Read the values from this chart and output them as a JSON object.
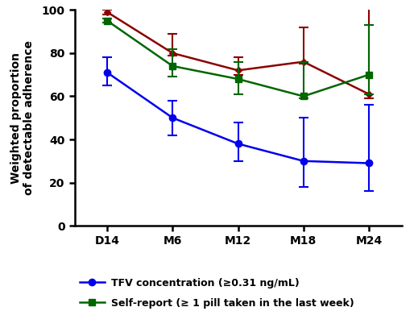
{
  "x_labels": [
    "D14",
    "M6",
    "M12",
    "M18",
    "M24"
  ],
  "x_positions": [
    0,
    1,
    2,
    3,
    4
  ],
  "tfv_y": [
    71,
    50,
    38,
    30,
    29
  ],
  "tfv_yerr_lo": [
    6,
    8,
    8,
    12,
    13
  ],
  "tfv_yerr_hi": [
    7,
    8,
    10,
    20,
    27
  ],
  "self_y": [
    95,
    74,
    68,
    60,
    70
  ],
  "self_yerr_lo": [
    1,
    5,
    7,
    1,
    9
  ],
  "self_yerr_hi": [
    1,
    8,
    8,
    16,
    23
  ],
  "pill_y": [
    99,
    80,
    72,
    76,
    61
  ],
  "pill_yerr_lo": [
    1,
    1,
    2,
    1,
    2
  ],
  "pill_yerr_hi": [
    1,
    9,
    6,
    16,
    40
  ],
  "tfv_color": "#0000ee",
  "self_color": "#006600",
  "pill_color": "#8b0000",
  "ylim": [
    0,
    100
  ],
  "ylabel": "Weighted proportion\nof detectable adherence",
  "legend_tfv": "TFV concentration (≥0.31 ng/mL)",
  "legend_self": "Self-report (≥ 1 pill taken in the last week)",
  "bg_color": "#ffffff"
}
